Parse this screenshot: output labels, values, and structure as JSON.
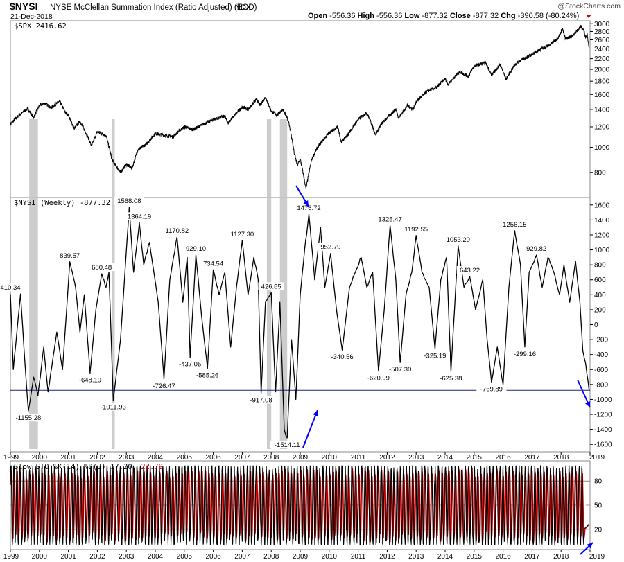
{
  "header": {
    "symbol": "$NYSI",
    "name": "NYSE McClellan Summation Index (Ratio Adjusted) (EOD)",
    "exchange": "INDX",
    "date": "21-Dec-2018",
    "brand": "@StockCharts.com",
    "ohlc": [
      {
        "label": "Open",
        "value": "-556.36"
      },
      {
        "label": "High",
        "value": "-556.36"
      },
      {
        "label": "Low",
        "value": "-877.32"
      },
      {
        "label": "Close",
        "value": "-877.32"
      },
      {
        "label": "Chg",
        "value": "-390.58 (-80.24%)"
      }
    ],
    "down_color": "#cc0000"
  },
  "chart_data": [
    {
      "type": "line",
      "panel": "price",
      "legend": "$SPX 2416.62",
      "series": [
        {
          "name": "$SPX",
          "color": "#000000",
          "points": [
            [
              1999.0,
              1230
            ],
            [
              1999.3,
              1330
            ],
            [
              1999.6,
              1410
            ],
            [
              1999.8,
              1300
            ],
            [
              2000.0,
              1450
            ],
            [
              2000.2,
              1480
            ],
            [
              2000.4,
              1420
            ],
            [
              2000.7,
              1500
            ],
            [
              2000.9,
              1360
            ],
            [
              2001.0,
              1330
            ],
            [
              2001.2,
              1180
            ],
            [
              2001.4,
              1260
            ],
            [
              2001.7,
              1080
            ],
            [
              2001.8,
              1010
            ],
            [
              2002.0,
              1150
            ],
            [
              2002.3,
              1110
            ],
            [
              2002.5,
              900
            ],
            [
              2002.6,
              860
            ],
            [
              2002.8,
              800
            ],
            [
              2003.0,
              860
            ],
            [
              2003.2,
              830
            ],
            [
              2003.4,
              980
            ],
            [
              2003.7,
              1030
            ],
            [
              2004.0,
              1130
            ],
            [
              2004.4,
              1110
            ],
            [
              2004.6,
              1100
            ],
            [
              2005.0,
              1200
            ],
            [
              2005.3,
              1170
            ],
            [
              2005.6,
              1220
            ],
            [
              2006.0,
              1280
            ],
            [
              2006.4,
              1320
            ],
            [
              2006.5,
              1240
            ],
            [
              2007.0,
              1430
            ],
            [
              2007.2,
              1400
            ],
            [
              2007.5,
              1530
            ],
            [
              2007.6,
              1450
            ],
            [
              2007.8,
              1560
            ],
            [
              2008.0,
              1380
            ],
            [
              2008.2,
              1330
            ],
            [
              2008.4,
              1400
            ],
            [
              2008.6,
              1260
            ],
            [
              2008.8,
              940
            ],
            [
              2008.9,
              850
            ],
            [
              2009.0,
              900
            ],
            [
              2009.2,
              690
            ],
            [
              2009.4,
              900
            ],
            [
              2009.6,
              1000
            ],
            [
              2010.0,
              1140
            ],
            [
              2010.3,
              1200
            ],
            [
              2010.4,
              1050
            ],
            [
              2010.6,
              1100
            ],
            [
              2011.0,
              1280
            ],
            [
              2011.3,
              1360
            ],
            [
              2011.6,
              1120
            ],
            [
              2011.8,
              1230
            ],
            [
              2012.0,
              1300
            ],
            [
              2012.3,
              1400
            ],
            [
              2012.4,
              1300
            ],
            [
              2012.7,
              1450
            ],
            [
              2012.9,
              1400
            ],
            [
              2013.0,
              1500
            ],
            [
              2013.4,
              1650
            ],
            [
              2013.7,
              1700
            ],
            [
              2014.0,
              1840
            ],
            [
              2014.1,
              1750
            ],
            [
              2014.5,
              1960
            ],
            [
              2014.8,
              1880
            ],
            [
              2015.0,
              2060
            ],
            [
              2015.4,
              2120
            ],
            [
              2015.6,
              1900
            ],
            [
              2015.9,
              2090
            ],
            [
              2016.1,
              1830
            ],
            [
              2016.4,
              2080
            ],
            [
              2016.6,
              2170
            ],
            [
              2016.9,
              2250
            ],
            [
              2017.3,
              2400
            ],
            [
              2017.6,
              2480
            ],
            [
              2017.9,
              2650
            ],
            [
              2018.05,
              2870
            ],
            [
              2018.15,
              2620
            ],
            [
              2018.4,
              2700
            ],
            [
              2018.7,
              2930
            ],
            [
              2018.8,
              2800
            ],
            [
              2018.85,
              2650
            ],
            [
              2018.9,
              2750
            ],
            [
              2018.97,
              2416
            ]
          ]
        }
      ],
      "y_ticks": [
        800,
        1000,
        1200,
        1400,
        1600,
        1800,
        2000,
        2200,
        2400,
        2600,
        2800,
        3000
      ],
      "y_scale": "log"
    },
    {
      "type": "line",
      "panel": "nysi",
      "legend": "$NYSI (Weekly) -877.32",
      "series": [
        {
          "name": "$NYSI",
          "color": "#000000",
          "points": [
            [
              1999.0,
              410
            ],
            [
              1999.1,
              -600
            ],
            [
              1999.35,
              410
            ],
            [
              1999.5,
              -500
            ],
            [
              1999.62,
              -1155
            ],
            [
              1999.8,
              -700
            ],
            [
              1999.95,
              -950
            ],
            [
              2000.15,
              -300
            ],
            [
              2000.3,
              -900
            ],
            [
              2000.6,
              -100
            ],
            [
              2000.8,
              -600
            ],
            [
              2001.05,
              840
            ],
            [
              2001.25,
              500
            ],
            [
              2001.4,
              -100
            ],
            [
              2001.55,
              400
            ],
            [
              2001.75,
              -648
            ],
            [
              2001.95,
              200
            ],
            [
              2002.15,
              680
            ],
            [
              2002.3,
              500
            ],
            [
              2002.4,
              700
            ],
            [
              2002.55,
              -1012
            ],
            [
              2002.8,
              -200
            ],
            [
              2003.1,
              1568
            ],
            [
              2003.25,
              700
            ],
            [
              2003.45,
              1364
            ],
            [
              2003.6,
              800
            ],
            [
              2003.8,
              1100
            ],
            [
              2004.1,
              300
            ],
            [
              2004.3,
              -726
            ],
            [
              2004.5,
              600
            ],
            [
              2004.75,
              1170
            ],
            [
              2004.95,
              300
            ],
            [
              2005.1,
              900
            ],
            [
              2005.2,
              -437
            ],
            [
              2005.4,
              929
            ],
            [
              2005.6,
              100
            ],
            [
              2005.8,
              -585
            ],
            [
              2006.0,
              734
            ],
            [
              2006.2,
              400
            ],
            [
              2006.4,
              700
            ],
            [
              2006.6,
              -300
            ],
            [
              2006.8,
              500
            ],
            [
              2007.0,
              1127
            ],
            [
              2007.2,
              400
            ],
            [
              2007.4,
              900
            ],
            [
              2007.55,
              600
            ],
            [
              2007.65,
              -917
            ],
            [
              2007.8,
              300
            ],
            [
              2008.0,
              427
            ],
            [
              2008.15,
              -900
            ],
            [
              2008.3,
              300
            ],
            [
              2008.45,
              -1400
            ],
            [
              2008.55,
              -1514
            ],
            [
              2008.7,
              -200
            ],
            [
              2008.85,
              -1000
            ],
            [
              2009.0,
              400
            ],
            [
              2009.15,
              1000
            ],
            [
              2009.3,
              1477
            ],
            [
              2009.5,
              600
            ],
            [
              2009.7,
              1300
            ],
            [
              2009.85,
              500
            ],
            [
              2010.05,
              953
            ],
            [
              2010.25,
              200
            ],
            [
              2010.45,
              -340
            ],
            [
              2010.7,
              500
            ],
            [
              2010.9,
              700
            ],
            [
              2011.1,
              900
            ],
            [
              2011.3,
              500
            ],
            [
              2011.5,
              700
            ],
            [
              2011.7,
              -621
            ],
            [
              2011.9,
              200
            ],
            [
              2012.1,
              1325
            ],
            [
              2012.3,
              600
            ],
            [
              2012.45,
              -507
            ],
            [
              2012.65,
              400
            ],
            [
              2012.85,
              700
            ],
            [
              2013.0,
              1192
            ],
            [
              2013.2,
              700
            ],
            [
              2013.45,
              500
            ],
            [
              2013.65,
              -325
            ],
            [
              2013.85,
              600
            ],
            [
              2014.05,
              900
            ],
            [
              2014.2,
              -625
            ],
            [
              2014.45,
              1053
            ],
            [
              2014.65,
              500
            ],
            [
              2014.85,
              643
            ],
            [
              2015.05,
              200
            ],
            [
              2015.3,
              600
            ],
            [
              2015.45,
              -200
            ],
            [
              2015.6,
              -770
            ],
            [
              2015.8,
              -300
            ],
            [
              2016.0,
              -800
            ],
            [
              2016.2,
              500
            ],
            [
              2016.4,
              1256
            ],
            [
              2016.6,
              800
            ],
            [
              2016.75,
              -299
            ],
            [
              2016.9,
              700
            ],
            [
              2017.15,
              930
            ],
            [
              2017.35,
              500
            ],
            [
              2017.55,
              900
            ],
            [
              2017.75,
              700
            ],
            [
              2017.95,
              400
            ],
            [
              2018.1,
              800
            ],
            [
              2018.3,
              300
            ],
            [
              2018.5,
              850
            ],
            [
              2018.65,
              300
            ],
            [
              2018.75,
              -350
            ],
            [
              2018.85,
              -520
            ],
            [
              2018.97,
              -877
            ]
          ]
        }
      ],
      "data_labels": [
        {
          "x": 1999.0,
          "y": 410,
          "text": "410.34"
        },
        {
          "x": 1999.62,
          "y": -1155,
          "text": "-1155.28"
        },
        {
          "x": 2001.05,
          "y": 840,
          "text": "839.57"
        },
        {
          "x": 2001.75,
          "y": -648,
          "text": "-648.19"
        },
        {
          "x": 2002.15,
          "y": 680,
          "text": "680.48"
        },
        {
          "x": 2002.55,
          "y": -1012,
          "text": "-1011.93"
        },
        {
          "x": 2003.1,
          "y": 1568,
          "text": "1568.08"
        },
        {
          "x": 2003.45,
          "y": 1364,
          "text": "1364.19"
        },
        {
          "x": 2004.3,
          "y": -726,
          "text": "-726.47"
        },
        {
          "x": 2004.75,
          "y": 1170,
          "text": "1170.82"
        },
        {
          "x": 2005.2,
          "y": -437,
          "text": "-437.05"
        },
        {
          "x": 2005.4,
          "y": 929,
          "text": "929.10"
        },
        {
          "x": 2005.8,
          "y": -585,
          "text": "-585.26"
        },
        {
          "x": 2006.0,
          "y": 734,
          "text": "734.54"
        },
        {
          "x": 2007.0,
          "y": 1127,
          "text": "1127.30"
        },
        {
          "x": 2007.65,
          "y": -917,
          "text": "-917.08"
        },
        {
          "x": 2008.0,
          "y": 427,
          "text": "426.85"
        },
        {
          "x": 2008.55,
          "y": -1514,
          "text": "-1514.11"
        },
        {
          "x": 2009.3,
          "y": 1477,
          "text": "1476.72"
        },
        {
          "x": 2010.05,
          "y": 953,
          "text": "952.79"
        },
        {
          "x": 2010.45,
          "y": -340,
          "text": "-340.56"
        },
        {
          "x": 2011.7,
          "y": -621,
          "text": "-620.99"
        },
        {
          "x": 2012.1,
          "y": 1325,
          "text": "1325.47"
        },
        {
          "x": 2012.45,
          "y": -507,
          "text": "-507.30"
        },
        {
          "x": 2013.0,
          "y": 1192,
          "text": "1192.55"
        },
        {
          "x": 2013.65,
          "y": -325,
          "text": "-325.19"
        },
        {
          "x": 2014.2,
          "y": -625,
          "text": "-625.38"
        },
        {
          "x": 2014.45,
          "y": 1053,
          "text": "1053.20"
        },
        {
          "x": 2014.85,
          "y": 643,
          "text": "643.22"
        },
        {
          "x": 2015.6,
          "y": -770,
          "text": "-769.89"
        },
        {
          "x": 2016.4,
          "y": 1256,
          "text": "1256.15"
        },
        {
          "x": 2016.75,
          "y": -299,
          "text": "-299.16"
        },
        {
          "x": 2017.15,
          "y": 930,
          "text": "929.82"
        }
      ],
      "reference_line": -877.32,
      "y_ticks": [
        -1600,
        -1400,
        -1200,
        -1000,
        -800,
        -600,
        -400,
        -200,
        0,
        200,
        400,
        600,
        800,
        1000,
        1200,
        1400,
        1600
      ],
      "ylim": [
        -1700,
        1700
      ]
    },
    {
      "type": "line",
      "panel": "stochastic",
      "legend": {
        "label": "Slow STO %K(14) %D(3)",
        "k": "17.20",
        "d": "22.79"
      },
      "k_color": "#000000",
      "d_color": "#cc0000",
      "y_ticks": [
        20,
        50,
        80
      ],
      "ylim": [
        0,
        100
      ]
    }
  ],
  "x_axis": {
    "range": [
      1999.0,
      2019.0
    ],
    "labels": [
      "1999",
      "2000",
      "2001",
      "2002",
      "2003",
      "2004",
      "2005",
      "2006",
      "2007",
      "2008",
      "2009",
      "2010",
      "2011",
      "2012",
      "2013",
      "2014",
      "2015",
      "2016",
      "2017",
      "2018",
      "2019"
    ]
  },
  "highlight_bands": [
    [
      1999.65,
      1999.95
    ],
    [
      2002.5,
      2002.6
    ],
    [
      2007.85,
      2008.0
    ],
    [
      2008.3,
      2008.55
    ]
  ],
  "arrows_color": "#0000ff"
}
